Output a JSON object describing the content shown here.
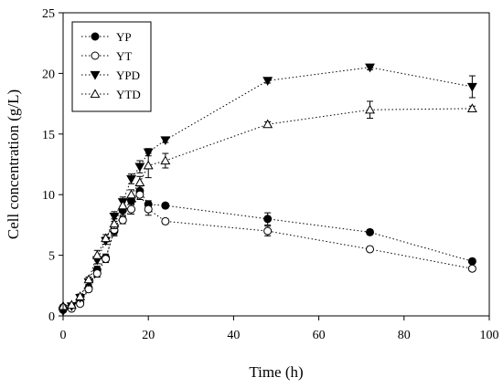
{
  "chart_data": {
    "type": "scatter",
    "xlabel": "Time (h)",
    "ylabel": "Cell concentration (g/L)",
    "xlim": [
      0,
      100
    ],
    "ylim": [
      0,
      25
    ],
    "xticks": [
      0,
      20,
      40,
      60,
      80,
      100
    ],
    "yticks": [
      0,
      5,
      10,
      15,
      20,
      25
    ],
    "grid": false,
    "legend_position": "top-left",
    "line_style": "dotted",
    "series": [
      {
        "name": "YP",
        "marker": "filled-circle",
        "x": [
          0,
          2,
          4,
          6,
          8,
          10,
          12,
          14,
          16,
          18,
          20,
          24,
          48,
          72,
          96
        ],
        "y": [
          0.5,
          0.7,
          1.1,
          2.3,
          3.8,
          4.8,
          7.0,
          8.7,
          9.5,
          10.3,
          9.2,
          9.1,
          8.0,
          6.9,
          4.5
        ],
        "err": [
          0.1,
          0.1,
          0.2,
          0.2,
          0.3,
          0.3,
          0.4,
          0.4,
          0.3,
          0.4,
          0.3,
          0.2,
          0.5,
          0.2,
          0.2
        ]
      },
      {
        "name": "YT",
        "marker": "open-circle",
        "x": [
          0,
          2,
          4,
          6,
          8,
          10,
          12,
          14,
          16,
          18,
          20,
          24,
          48,
          72,
          96
        ],
        "y": [
          0.7,
          0.6,
          1.0,
          2.2,
          3.5,
          4.7,
          7.1,
          7.9,
          8.8,
          10.0,
          8.8,
          7.8,
          7.0,
          5.5,
          3.9
        ],
        "err": [
          0.1,
          0.1,
          0.2,
          0.2,
          0.3,
          0.3,
          0.4,
          0.3,
          0.4,
          0.4,
          0.5,
          0.2,
          0.4,
          0.2,
          0.2
        ]
      },
      {
        "name": "YPD",
        "marker": "filled-triangle-down",
        "x": [
          0,
          2,
          4,
          6,
          8,
          10,
          12,
          14,
          16,
          18,
          20,
          24,
          48,
          72,
          96
        ],
        "y": [
          0.4,
          0.8,
          1.5,
          2.8,
          4.6,
          6.2,
          8.2,
          9.4,
          11.3,
          12.3,
          13.5,
          14.5,
          19.4,
          20.5,
          18.9
        ],
        "err": [
          0.1,
          0.1,
          0.2,
          0.2,
          0.3,
          0.3,
          0.4,
          0.4,
          0.4,
          0.5,
          0.3,
          0.2,
          0.2,
          0.2,
          0.9
        ]
      },
      {
        "name": "YTD",
        "marker": "open-triangle-up",
        "x": [
          0,
          2,
          4,
          6,
          8,
          10,
          12,
          14,
          16,
          18,
          20,
          24,
          48,
          72,
          96
        ],
        "y": [
          0.8,
          0.9,
          1.6,
          3.0,
          5.0,
          6.4,
          7.6,
          9.1,
          10.0,
          11.0,
          12.4,
          12.8,
          15.8,
          17.0,
          17.1
        ],
        "err": [
          0.1,
          0.1,
          0.2,
          0.2,
          0.4,
          0.3,
          0.4,
          0.4,
          0.4,
          0.5,
          1.0,
          0.6,
          0.2,
          0.7,
          0.2
        ]
      }
    ]
  }
}
